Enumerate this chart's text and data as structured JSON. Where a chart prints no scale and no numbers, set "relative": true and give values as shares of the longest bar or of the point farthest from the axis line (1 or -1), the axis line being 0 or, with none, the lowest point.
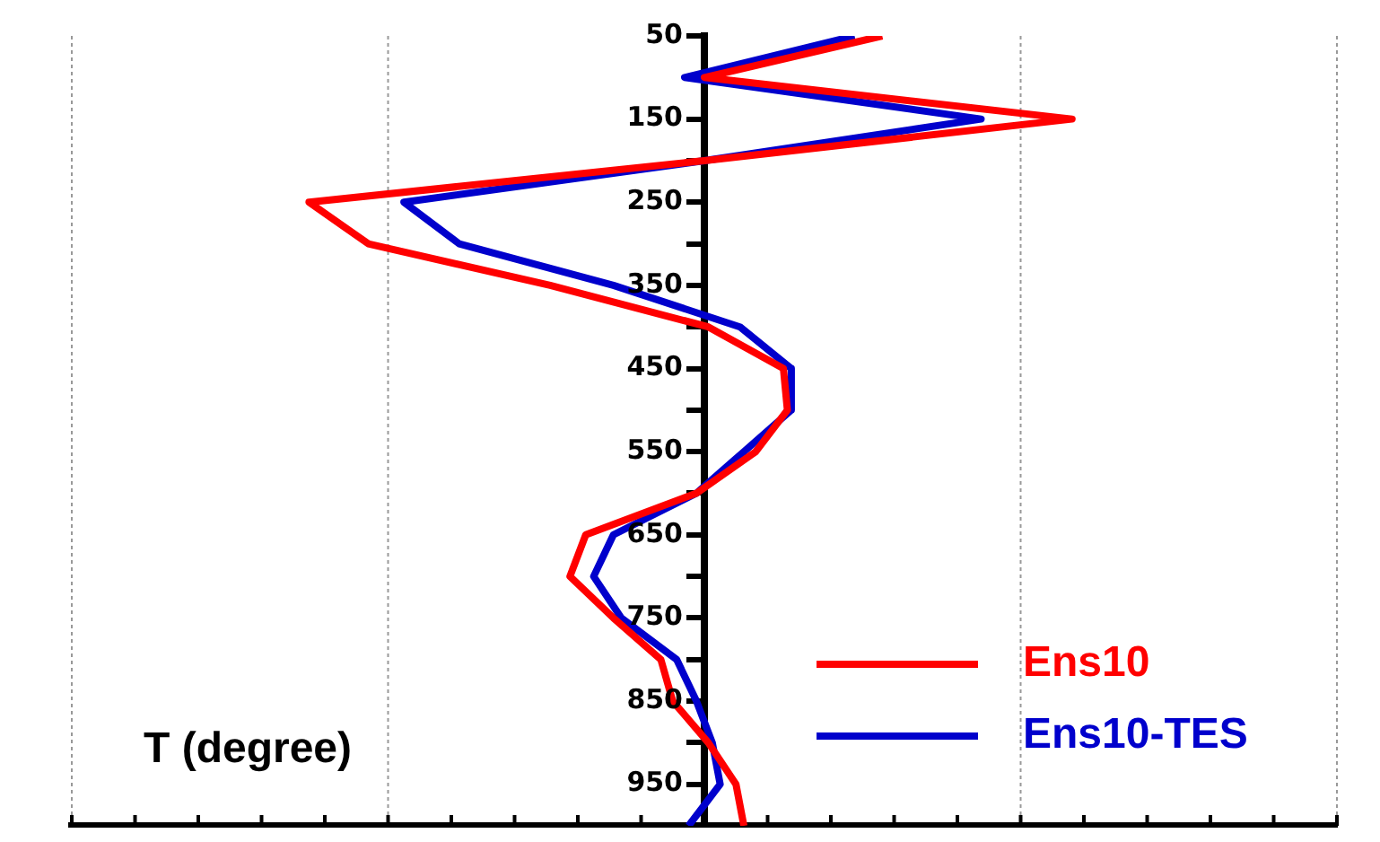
{
  "chart_data": {
    "type": "line",
    "orientation": "horizontal",
    "relative": true,
    "xlabel": "T (degree)",
    "x": [
      50,
      100,
      150,
      200,
      250,
      300,
      350,
      400,
      450,
      500,
      550,
      600,
      650,
      700,
      750,
      800,
      850,
      900,
      950,
      1000
    ],
    "ref_lines": [
      {
        "axis": "x",
        "value": -1.6,
        "color": "#999999",
        "line_style": "dotted"
      },
      {
        "axis": "x",
        "value": -0.8,
        "color": "#999999",
        "line_style": "dotted"
      },
      {
        "axis": "x",
        "value": 0.8,
        "color": "#999999",
        "line_style": "dotted"
      },
      {
        "axis": "x",
        "value": 1.6,
        "color": "#999999",
        "line_style": "dotted"
      }
    ],
    "ylim": [
      1000,
      50
    ],
    "yticks": [
      50,
      {
        "value": 100,
        "label": null
      },
      150,
      {
        "value": 200,
        "label": null
      },
      250,
      {
        "value": 300,
        "label": null
      },
      350,
      {
        "value": 400,
        "label": null
      },
      450,
      {
        "value": 500,
        "label": null
      },
      550,
      {
        "value": 600,
        "label": null
      },
      650,
      {
        "value": 700,
        "label": null
      },
      750,
      {
        "value": 800,
        "label": null
      },
      850,
      {
        "value": 900,
        "label": null
      },
      950
    ],
    "series": [
      {
        "name": "Ens10",
        "color": "#ff0000",
        "values": [
          0.45,
          0,
          0.93,
          0,
          -1,
          -0.85,
          -0.39,
          0.01,
          0.2,
          0.21,
          0.13,
          -0.02,
          -0.3,
          -0.34,
          -0.23,
          -0.11,
          -0.08,
          0.01,
          0.08,
          0.1
        ]
      },
      {
        "name": "Ens10-TES",
        "color": "#0000cc",
        "values": [
          0.38,
          -0.05,
          0.7,
          0,
          -0.76,
          -0.62,
          -0.23,
          0.09,
          0.22,
          0.22,
          0.1,
          -0.02,
          -0.23,
          -0.28,
          -0.21,
          -0.07,
          -0.02,
          0.02,
          0.04,
          -0.04
        ]
      }
    ],
    "legend": "bottom right",
    "line_style": "solid",
    "marker": "none"
  }
}
